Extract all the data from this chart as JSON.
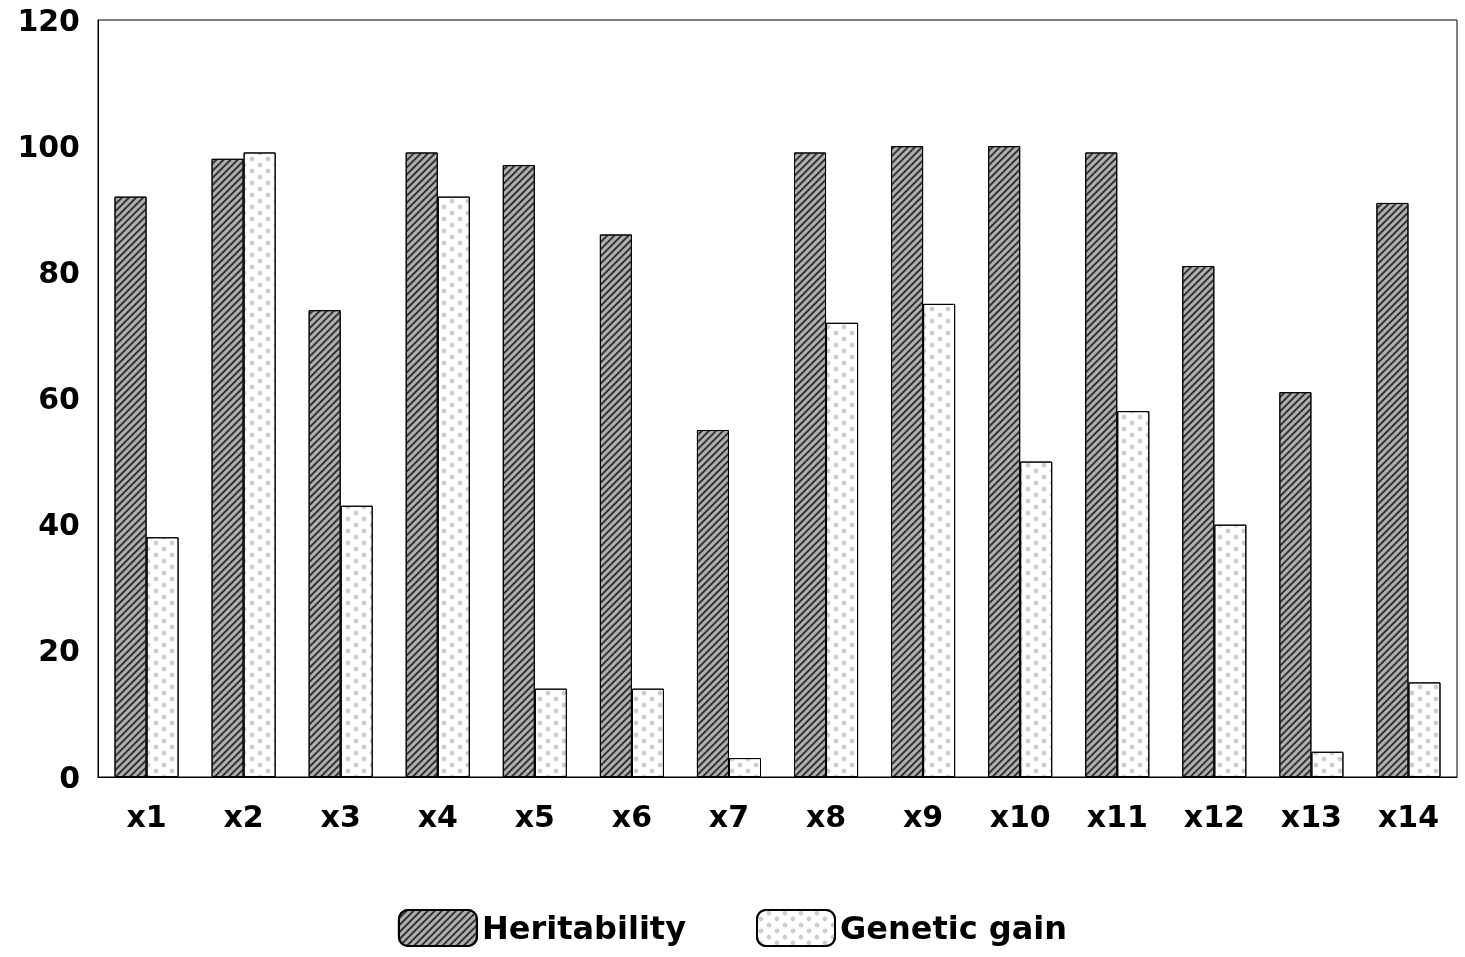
{
  "chart_data": {
    "type": "bar",
    "categories": [
      "x1",
      "x2",
      "x3",
      "x4",
      "x5",
      "x6",
      "x7",
      "x8",
      "x9",
      "x10",
      "x11",
      "x12",
      "x13",
      "x14"
    ],
    "series": [
      {
        "name": "Heritability",
        "color": "#b0b0b0",
        "values": [
          92,
          98,
          74,
          99,
          97,
          86,
          55,
          99,
          100,
          100,
          99,
          81,
          61,
          91
        ]
      },
      {
        "name": "Genetic gain",
        "color": "#ffffff",
        "values": [
          38,
          99,
          43,
          92,
          14,
          14,
          3,
          72,
          75,
          50,
          58,
          40,
          4,
          15
        ]
      }
    ],
    "ylim": [
      0,
      120
    ],
    "yticks": [
      0,
      20,
      40,
      60,
      80,
      100,
      120
    ],
    "grid": false,
    "legend": "bottom"
  }
}
